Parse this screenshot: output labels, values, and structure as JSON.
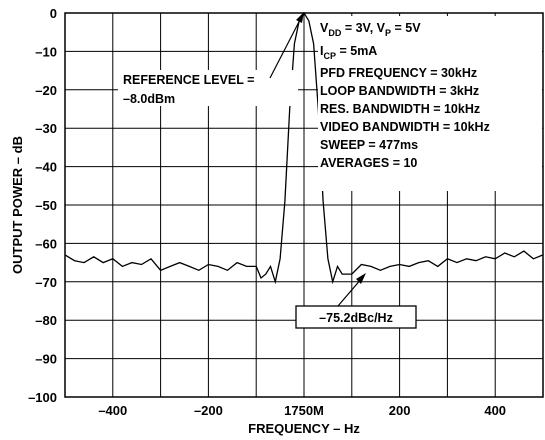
{
  "chart_data": {
    "type": "line",
    "xlabel": "FREQUENCY – Hz",
    "ylabel": "OUTPUT POWER – dB",
    "xlim": [
      -500,
      500
    ],
    "ylim": [
      -100,
      0
    ],
    "x_ticks": [
      {
        "value": -400,
        "label": "–400"
      },
      {
        "value": -200,
        "label": "–200"
      },
      {
        "value": 0,
        "label": "1750M"
      },
      {
        "value": 200,
        "label": "200"
      },
      {
        "value": 400,
        "label": "400"
      }
    ],
    "y_ticks": [
      {
        "value": 0,
        "label": "0"
      },
      {
        "value": -10,
        "label": "–10"
      },
      {
        "value": -20,
        "label": "–20"
      },
      {
        "value": -30,
        "label": "–30"
      },
      {
        "value": -40,
        "label": "–40"
      },
      {
        "value": -50,
        "label": "–50"
      },
      {
        "value": -60,
        "label": "–60"
      },
      {
        "value": -70,
        "label": "–70"
      },
      {
        "value": -80,
        "label": "–80"
      },
      {
        "value": -90,
        "label": "–90"
      },
      {
        "value": -100,
        "label": "–100"
      }
    ],
    "grid": true,
    "series": [
      {
        "x": [
          -500,
          -480,
          -460,
          -440,
          -420,
          -400,
          -380,
          -360,
          -340,
          -320,
          -300,
          -280,
          -260,
          -240,
          -220,
          -200,
          -180,
          -160,
          -140,
          -120,
          -100,
          -90,
          -80,
          -70,
          -60,
          -50,
          -40,
          -30,
          -20,
          -10,
          0,
          10,
          20,
          30,
          40,
          50,
          60,
          70,
          80,
          100,
          120,
          140,
          160,
          180,
          200,
          220,
          240,
          260,
          280,
          300,
          320,
          340,
          360,
          380,
          400,
          420,
          440,
          460,
          480,
          500
        ],
        "y": [
          -63,
          -64.5,
          -65,
          -63.5,
          -65,
          -64,
          -66,
          -65,
          -65.5,
          -64,
          -67,
          -66,
          -65,
          -66,
          -67,
          -65.5,
          -66,
          -67,
          -65,
          -66,
          -66,
          -69,
          -68,
          -66,
          -70,
          -64,
          -49,
          -25,
          -8,
          -2,
          0,
          -2,
          -8,
          -25,
          -49,
          -64,
          -70,
          -66,
          -68,
          -68,
          -65.5,
          -66,
          -67,
          -66,
          -65.5,
          -66,
          -65,
          -64.5,
          -66,
          -64,
          -65,
          -64,
          -64.5,
          -63.5,
          -64,
          -62.5,
          -63.5,
          -62,
          -64,
          -63
        ]
      }
    ],
    "annotations": {
      "reference_line1": "REFERENCE LEVEL =",
      "reference_line2": "–8.0dBm",
      "vdd_main": "V",
      "vdd_sub": "DD",
      "vdd_mid": " = 3V, V",
      "vp_sub": "P",
      "vp_end": " = 5V",
      "icp_main": "I",
      "icp_sub": "CP",
      "icp_end": " = 5mA",
      "pfd": "PFD FREQUENCY = 30kHz",
      "loop": "LOOP BANDWIDTH = 3kHz",
      "res": "RES. BANDWIDTH = 10kHz",
      "video": "VIDEO BANDWIDTH = 10kHz",
      "sweep": "SWEEP = 477ms",
      "averages": "AVERAGES = 10",
      "noise_label": "–75.2dBc/Hz"
    }
  }
}
